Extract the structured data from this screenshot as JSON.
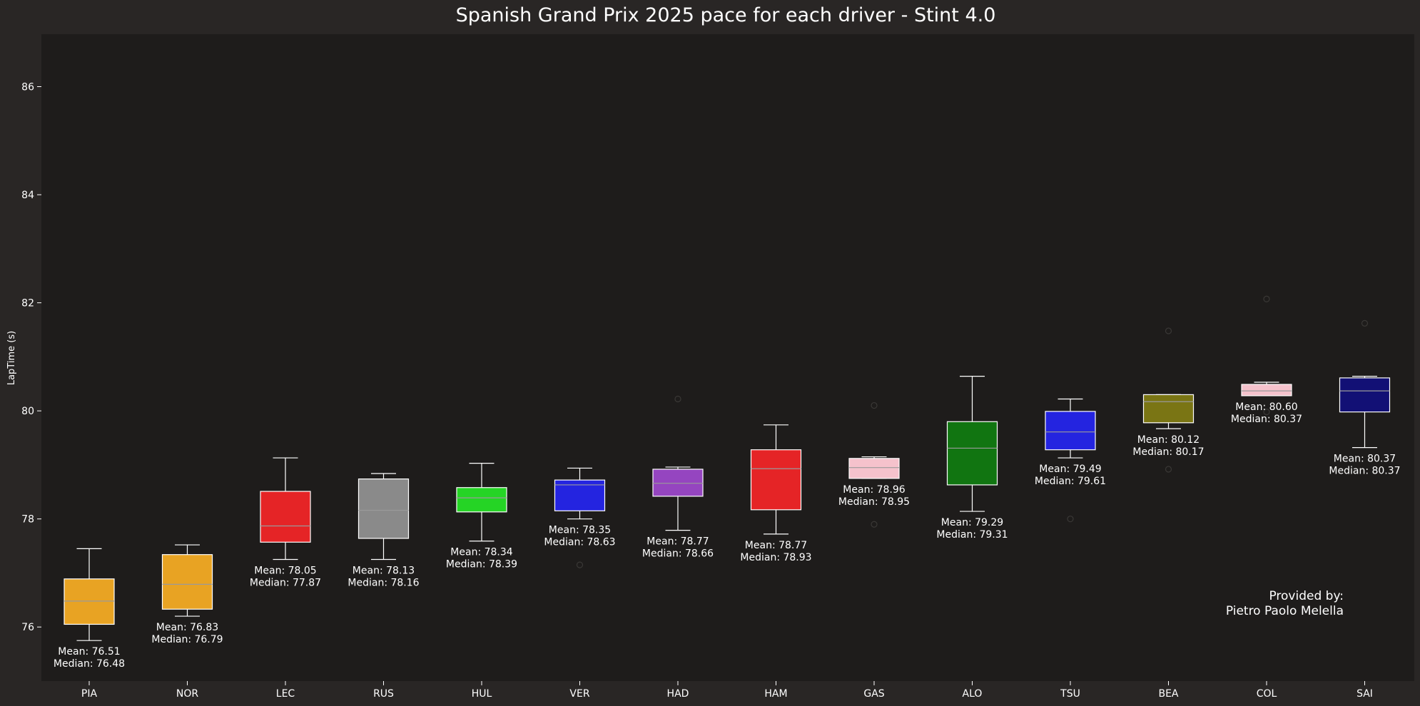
{
  "chart_data": {
    "type": "box",
    "title": "Spanish Grand Prix 2025 pace for each driver - Stint 4.0",
    "ylabel": "LapTime (s)",
    "xlabel": "",
    "ylim": [
      75.0,
      86.97
    ],
    "yticks": [
      76,
      78,
      80,
      82,
      84,
      86
    ],
    "grid": false,
    "credit": [
      "Provided by:",
      "Pietro Paolo Melella"
    ],
    "categories": [
      "PIA",
      "NOR",
      "LEC",
      "RUS",
      "HUL",
      "VER",
      "HAD",
      "HAM",
      "GAS",
      "ALO",
      "TSU",
      "BEA",
      "COL",
      "SAI"
    ],
    "boxes": [
      {
        "driver": "PIA",
        "color": "#e8a323",
        "whisker_low": 75.75,
        "q1": 76.05,
        "median": 76.48,
        "q3": 76.89,
        "whisker_high": 77.45,
        "outliers": [],
        "mean": 76.51,
        "mean_label": "Mean: 76.51",
        "median_label": "Median: 76.48"
      },
      {
        "driver": "NOR",
        "color": "#e8a323",
        "whisker_low": 76.2,
        "q1": 76.33,
        "median": 76.79,
        "q3": 77.34,
        "whisker_high": 77.52,
        "outliers": [],
        "mean": 76.83,
        "mean_label": "Mean: 76.83",
        "median_label": "Median: 76.79"
      },
      {
        "driver": "LEC",
        "color": "#e52426",
        "whisker_low": 77.25,
        "q1": 77.57,
        "median": 77.87,
        "q3": 78.51,
        "whisker_high": 79.13,
        "outliers": [],
        "mean": 78.05,
        "mean_label": "Mean: 78.05",
        "median_label": "Median: 77.87"
      },
      {
        "driver": "RUS",
        "color": "#8a8a8a",
        "whisker_low": 77.25,
        "q1": 77.64,
        "median": 78.16,
        "q3": 78.74,
        "whisker_high": 78.84,
        "outliers": [],
        "mean": 78.13,
        "mean_label": "Mean: 78.13",
        "median_label": "Median: 78.16"
      },
      {
        "driver": "HUL",
        "color": "#25d425",
        "whisker_low": 77.59,
        "q1": 78.13,
        "median": 78.39,
        "q3": 78.58,
        "whisker_high": 79.03,
        "outliers": [],
        "mean": 78.34,
        "mean_label": "Mean: 78.34",
        "median_label": "Median: 78.39"
      },
      {
        "driver": "VER",
        "color": "#2424e0",
        "whisker_low": 78.0,
        "q1": 78.15,
        "median": 78.63,
        "q3": 78.72,
        "whisker_high": 78.94,
        "outliers": [
          77.15
        ],
        "mean": 78.35,
        "mean_label": "Mean: 78.35",
        "median_label": "Median: 78.63"
      },
      {
        "driver": "HAD",
        "color": "#9545c0",
        "whisker_low": 77.79,
        "q1": 78.42,
        "median": 78.66,
        "q3": 78.92,
        "whisker_high": 78.96,
        "outliers": [
          80.22
        ],
        "mean": 78.77,
        "mean_label": "Mean: 78.77",
        "median_label": "Median: 78.66"
      },
      {
        "driver": "HAM",
        "color": "#e52426",
        "whisker_low": 77.72,
        "q1": 78.17,
        "median": 78.93,
        "q3": 79.28,
        "whisker_high": 79.74,
        "outliers": [],
        "mean": 78.77,
        "mean_label": "Mean: 78.77",
        "median_label": "Median: 78.93"
      },
      {
        "driver": "GAS",
        "color": "#f5c2cc",
        "whisker_low": 78.75,
        "q1": 78.75,
        "median": 78.95,
        "q3": 79.12,
        "whisker_high": 79.15,
        "outliers": [
          80.1,
          77.9
        ],
        "mean": 78.96,
        "mean_label": "Mean: 78.96",
        "median_label": "Median: 78.95"
      },
      {
        "driver": "ALO",
        "color": "#117511",
        "whisker_low": 78.14,
        "q1": 78.63,
        "median": 79.31,
        "q3": 79.8,
        "whisker_high": 80.64,
        "outliers": [],
        "mean": 79.29,
        "mean_label": "Mean: 79.29",
        "median_label": "Median: 79.31"
      },
      {
        "driver": "TSU",
        "color": "#2424e0",
        "whisker_low": 79.13,
        "q1": 79.28,
        "median": 79.61,
        "q3": 79.99,
        "whisker_high": 80.22,
        "outliers": [
          78.0
        ],
        "mean": 79.49,
        "mean_label": "Mean: 79.49",
        "median_label": "Median: 79.61"
      },
      {
        "driver": "BEA",
        "color": "#7a7514",
        "whisker_low": 79.67,
        "q1": 79.78,
        "median": 80.17,
        "q3": 80.3,
        "whisker_high": 80.3,
        "outliers": [
          81.48,
          78.92
        ],
        "mean": 80.12,
        "mean_label": "Mean: 80.12",
        "median_label": "Median: 80.17"
      },
      {
        "driver": "COL",
        "color": "#f5c2cc",
        "whisker_low": 80.28,
        "q1": 80.28,
        "median": 80.37,
        "q3": 80.49,
        "whisker_high": 80.53,
        "outliers": [
          82.07,
          79.98
        ],
        "mean": 80.6,
        "mean_label": "Mean: 80.60",
        "median_label": "Median: 80.37"
      },
      {
        "driver": "SAI",
        "color": "#121075",
        "whisker_low": 79.32,
        "q1": 79.98,
        "median": 80.37,
        "q3": 80.61,
        "whisker_high": 80.64,
        "outliers": [
          81.62
        ],
        "mean": 80.37,
        "mean_label": "Mean: 80.37",
        "median_label": "Median: 80.37"
      }
    ]
  }
}
